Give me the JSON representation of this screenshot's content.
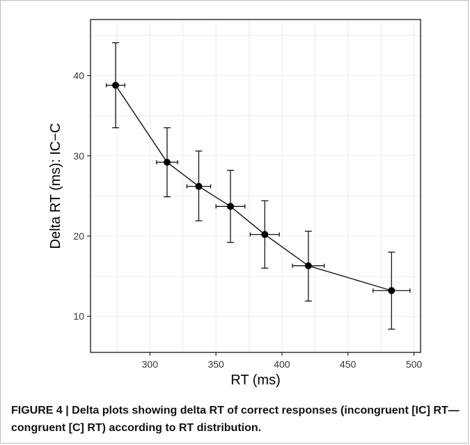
{
  "caption": {
    "figure_label": "FIGURE 4 |",
    "text": " Delta plots showing delta RT of correct responses (incongruent [IC] RT—congruent [C] RT) according to RT distribution."
  },
  "chart_data": {
    "type": "line",
    "xlabel": "RT (ms)",
    "ylabel": "Delta RT (ms): IC−C",
    "xlim": [
      255,
      505
    ],
    "ylim": [
      5.5,
      47
    ],
    "xticks": [
      300,
      350,
      400,
      450,
      500
    ],
    "yticks": [
      10,
      20,
      30,
      40
    ],
    "grid": true,
    "marker": "filled-circle",
    "color": "#000000",
    "gridline_color": "#ebebeb",
    "points": [
      {
        "x": 274,
        "y": 38.8,
        "x_err": [
          267,
          281
        ],
        "y_err": [
          33.5,
          44.1
        ]
      },
      {
        "x": 313,
        "y": 29.2,
        "x_err": [
          305,
          321
        ],
        "y_err": [
          24.9,
          33.5
        ]
      },
      {
        "x": 337,
        "y": 26.2,
        "x_err": [
          328,
          346
        ],
        "y_err": [
          21.9,
          30.6
        ]
      },
      {
        "x": 361,
        "y": 23.7,
        "x_err": [
          350,
          372
        ],
        "y_err": [
          19.2,
          28.2
        ]
      },
      {
        "x": 387,
        "y": 20.2,
        "x_err": [
          376,
          398
        ],
        "y_err": [
          16.0,
          24.4
        ]
      },
      {
        "x": 420,
        "y": 16.3,
        "x_err": [
          408,
          432
        ],
        "y_err": [
          11.9,
          20.6
        ]
      },
      {
        "x": 483,
        "y": 13.2,
        "x_err": [
          469,
          497
        ],
        "y_err": [
          8.4,
          18.0
        ]
      }
    ]
  }
}
